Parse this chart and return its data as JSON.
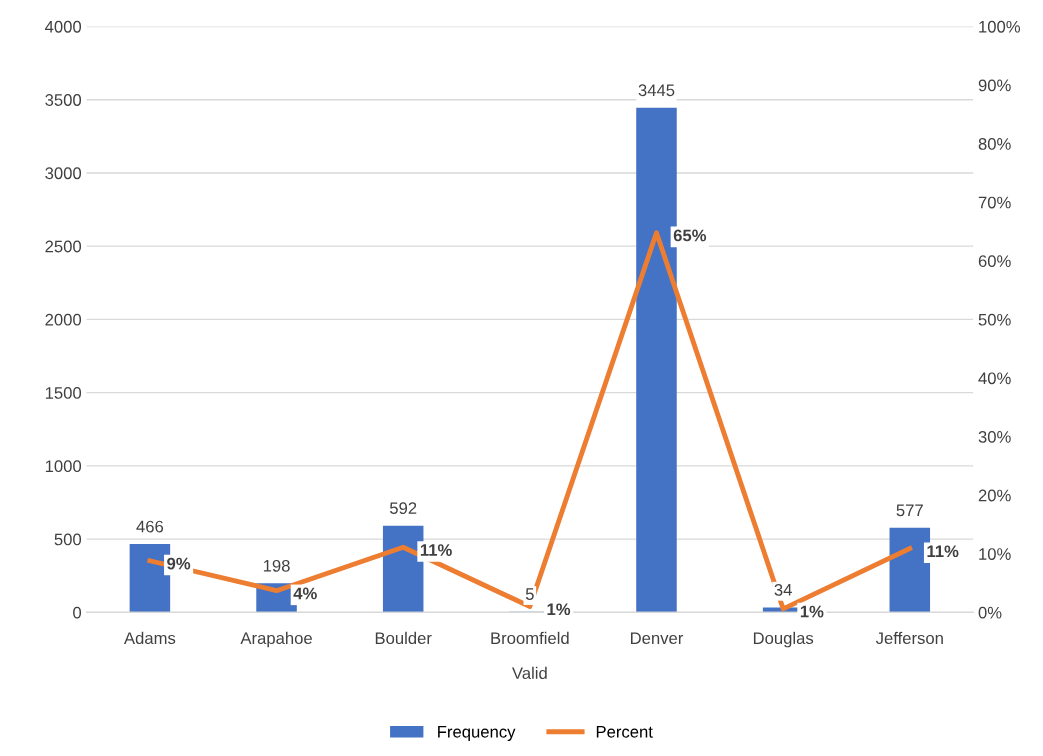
{
  "chart_data": {
    "type": "bar",
    "xlabel": "Valid",
    "categories": [
      "Adams",
      "Arapahoe",
      "Boulder",
      "Broomfield",
      "Denver",
      "Douglas",
      "Jefferson"
    ],
    "series": [
      {
        "name": "Frequency",
        "color": "#4472c4",
        "values": [
          466,
          198,
          592,
          5,
          3445,
          34,
          577
        ],
        "value_labels": [
          "466",
          "198",
          "592",
          "5",
          "3445",
          "34",
          "577"
        ]
      },
      {
        "name": "Percent",
        "type": "line",
        "axis": "y2",
        "color": "#ed7d31",
        "values": [
          8.8,
          3.7,
          11.1,
          1,
          64.8,
          0.6,
          10.9
        ],
        "value_labels": [
          "9%",
          "4%",
          "11%",
          "1%",
          "65%",
          "1%",
          "11%"
        ]
      }
    ],
    "ylim": [
      0,
      4000
    ],
    "yticks": [
      0,
      500,
      1000,
      1500,
      2000,
      2500,
      3000,
      3500,
      4000
    ],
    "y2lim": [
      0,
      100
    ],
    "y2ticks": [
      {
        "value": 0,
        "label": "0%"
      },
      {
        "value": 10,
        "label": "10%"
      },
      {
        "value": 20,
        "label": "20%"
      },
      {
        "value": 30,
        "label": "30%"
      },
      {
        "value": 40,
        "label": "40%"
      },
      {
        "value": 50,
        "label": "50%"
      },
      {
        "value": 60,
        "label": "60%"
      },
      {
        "value": 70,
        "label": "70%"
      },
      {
        "value": 80,
        "label": "80%"
      },
      {
        "value": 90,
        "label": "90%"
      },
      {
        "value": 100,
        "label": "100%"
      }
    ],
    "grid": "y",
    "legend": "bottom",
    "marker": "none",
    "line_style": "solid"
  }
}
